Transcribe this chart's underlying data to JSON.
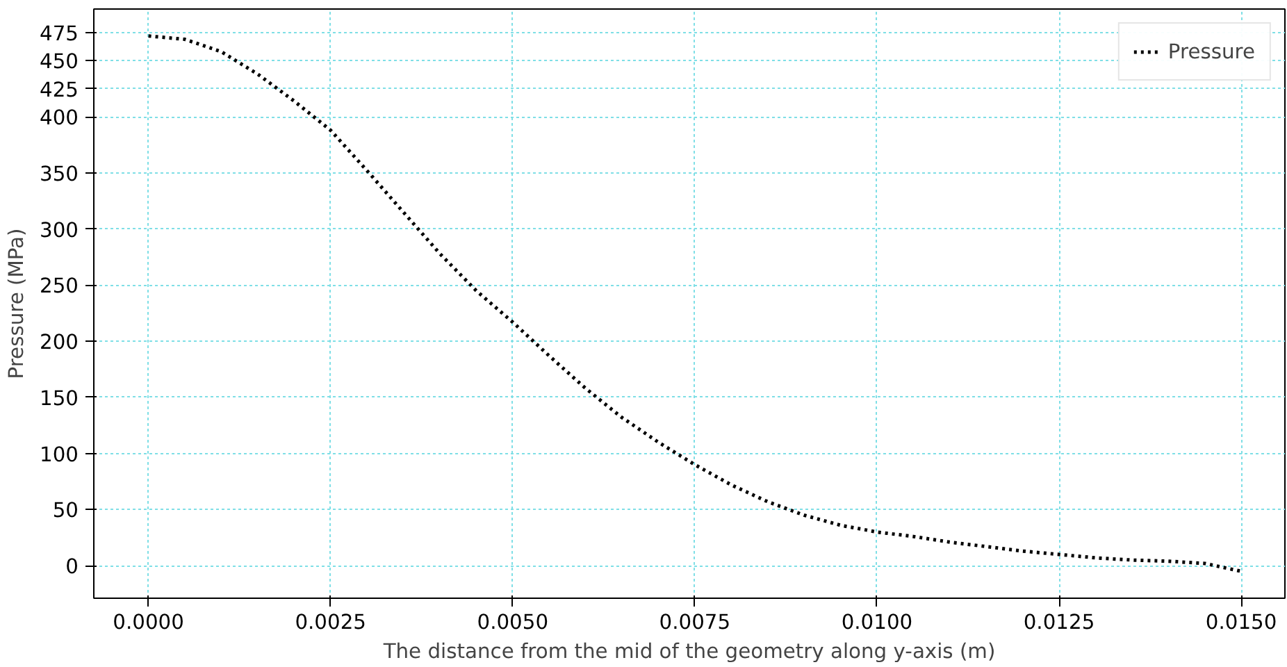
{
  "chart_data": {
    "type": "line",
    "xlabel": "The distance from the mid of the geometry along y-axis (m)",
    "ylabel": "Pressure (MPa)",
    "x": [
      0,
      0.0005,
      0.001,
      0.0015,
      0.002,
      0.0025,
      0.003,
      0.0035,
      0.004,
      0.0045,
      0.005,
      0.0055,
      0.006,
      0.0065,
      0.007,
      0.0075,
      0.008,
      0.0085,
      0.009,
      0.0095,
      0.01,
      0.0105,
      0.011,
      0.0115,
      0.012,
      0.0125,
      0.013,
      0.0135,
      0.014,
      0.0145,
      0.015
    ],
    "series": [
      {
        "name": "Pressure",
        "color": "#000000",
        "values": [
          472,
          469,
          458,
          438,
          414,
          388,
          352,
          315,
          278,
          245,
          217,
          187,
          158,
          132,
          110,
          90,
          72,
          57,
          45,
          36,
          30,
          26,
          21,
          17,
          13,
          10,
          7,
          5,
          4,
          2,
          -5
        ]
      }
    ],
    "xlim": [
      -0.00075,
      0.0156
    ],
    "ylim": [
      -29,
      496
    ],
    "xticks": [
      {
        "value": 0,
        "label": "0.0000"
      },
      {
        "value": 0.0025,
        "label": "0.0025"
      },
      {
        "value": 0.005,
        "label": "0.0050"
      },
      {
        "value": 0.0075,
        "label": "0.0075"
      },
      {
        "value": 0.01,
        "label": "0.0100"
      },
      {
        "value": 0.0125,
        "label": "0.0125"
      },
      {
        "value": 0.015,
        "label": "0.0150"
      }
    ],
    "yticks": [
      0,
      50,
      100,
      150,
      200,
      250,
      300,
      350,
      400,
      425,
      450,
      475
    ],
    "grid": true,
    "legend": "top right",
    "line_style": "dotted",
    "marker": "none"
  }
}
